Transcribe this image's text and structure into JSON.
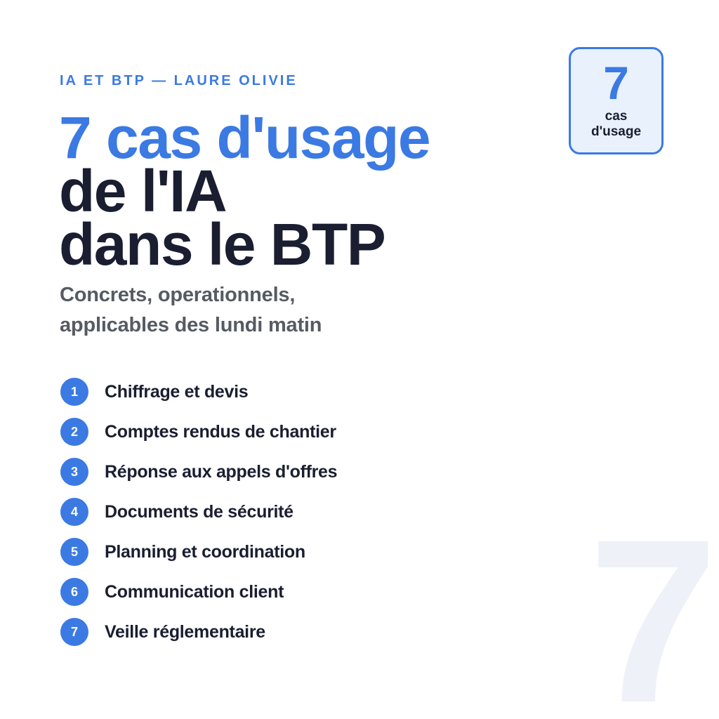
{
  "colors": {
    "accent": "#3b7ae3",
    "navy": "#1a1e30",
    "gray": "#565b63",
    "badge_background": "#e9f1fc",
    "watermark": "#eef1f8",
    "background": "#ffffff"
  },
  "header": {
    "eyebrow": "IA ET BTP — LAURE OLIVIE",
    "title_line1": "7 cas d'usage",
    "title_line2": "de l'IA",
    "title_line3": "dans le BTP",
    "subtitle_line1": "Concrets, operationnels,",
    "subtitle_line2": "applicables des lundi matin"
  },
  "badge": {
    "number": "7",
    "label_line1": "cas",
    "label_line2": "d'usage"
  },
  "list": {
    "items": [
      {
        "number": "1",
        "label": "Chiffrage et devis"
      },
      {
        "number": "2",
        "label": "Comptes rendus de chantier"
      },
      {
        "number": "3",
        "label": "Réponse aux appels d'offres"
      },
      {
        "number": "4",
        "label": "Documents de sécurité"
      },
      {
        "number": "5",
        "label": "Planning et coordination"
      },
      {
        "number": "6",
        "label": "Communication client"
      },
      {
        "number": "7",
        "label": "Veille réglementaire"
      }
    ]
  },
  "watermark": {
    "glyph": "7"
  }
}
